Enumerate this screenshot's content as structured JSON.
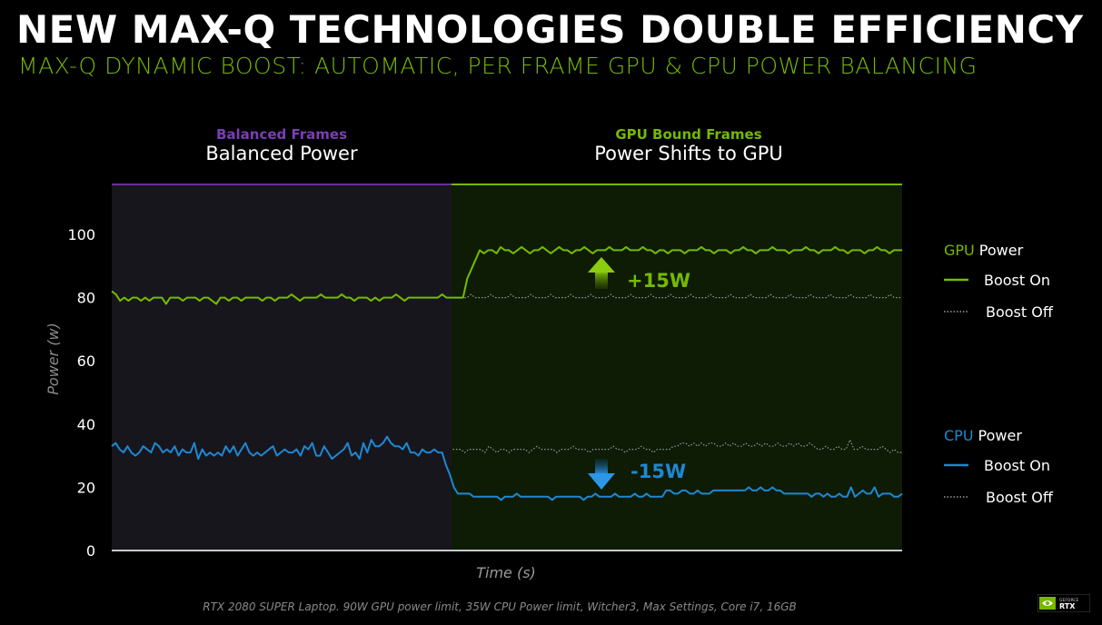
{
  "title": "NEW MAX-Q TECHNOLOGIES DOUBLE EFFICIENCY",
  "subtitle": "MAX-Q DYNAMIC BOOST: AUTOMATIC, PER FRAME GPU & CPU POWER BALANCING",
  "footnote": "RTX 2080 SUPER Laptop. 90W GPU power limit, 35W CPU Power limit, Witcher3, Max Settings, Core i7, 16GB",
  "logo": {
    "text_top": "GEFORCE",
    "text_main": "RTX"
  },
  "colors": {
    "gpu": "#76b900",
    "cpu": "#1e88d2",
    "balanced": "#6a2f9e",
    "gpu_region_bg": "#0d1a04",
    "balanced_region_bg": "#17161d"
  },
  "chart_data": {
    "type": "line",
    "xlabel": "Time (s)",
    "ylabel": "Power (w)",
    "ylim": [
      0,
      100
    ],
    "yticks": [
      0,
      20,
      40,
      60,
      80,
      100
    ],
    "regions": [
      {
        "category": "Balanced Frames",
        "label": "Balanced Power",
        "x_start": 0,
        "x_end": 0.43
      },
      {
        "category": "GPU Bound Frames",
        "label": "Power Shifts to GPU",
        "x_start": 0.43,
        "x_end": 1.0
      }
    ],
    "annotations": [
      {
        "text": "+15W",
        "direction": "up",
        "series": "gpu"
      },
      {
        "text": "-15W",
        "direction": "down",
        "series": "cpu"
      }
    ],
    "legend_groups": [
      {
        "name_prefix": "GPU",
        "name_suffix": "Power",
        "entries": [
          "Boost On",
          "Boost Off"
        ]
      },
      {
        "name_prefix": "CPU",
        "name_suffix": "Power",
        "entries": [
          "Boost On",
          "Boost Off"
        ]
      }
    ],
    "legend_placement": "right",
    "series": [
      {
        "name": "GPU Power Boost On",
        "values": [
          82,
          81,
          79,
          80,
          79,
          80,
          80,
          79,
          80,
          79,
          80,
          80,
          80,
          78,
          80,
          80,
          80,
          79,
          80,
          80,
          80,
          79,
          80,
          80,
          79,
          78,
          80,
          80,
          79,
          80,
          80,
          79,
          80,
          80,
          80,
          80,
          79,
          80,
          80,
          79,
          80,
          80,
          80,
          81,
          80,
          79,
          80,
          80,
          80,
          80,
          81,
          80,
          80,
          80,
          80,
          81,
          80,
          80,
          79,
          80,
          80,
          80,
          79,
          80,
          79,
          80,
          80,
          80,
          81,
          80,
          79,
          80,
          80,
          80,
          80,
          80,
          80,
          80,
          80,
          81,
          80,
          80,
          80,
          80,
          80,
          86,
          89,
          92,
          95,
          94,
          95,
          95,
          94,
          96,
          95,
          95,
          94,
          95,
          96,
          95,
          94,
          95,
          95,
          96,
          95,
          94,
          95,
          96,
          95,
          95,
          94,
          95,
          95,
          96,
          95,
          94,
          95,
          95,
          95,
          96,
          95,
          95,
          95,
          96,
          95,
          95,
          95,
          96,
          95,
          95,
          94,
          95,
          95,
          94,
          95,
          95,
          95,
          94,
          95,
          95,
          95,
          96,
          95,
          95,
          94,
          95,
          95,
          95,
          94,
          95,
          95,
          96,
          95,
          95,
          94,
          95,
          95,
          95,
          96,
          95,
          95,
          95,
          94,
          95,
          95,
          95,
          96,
          95,
          95,
          94,
          95,
          95,
          95,
          96,
          95,
          95,
          94,
          95,
          95,
          95,
          94,
          95,
          95,
          96,
          95,
          95,
          94,
          95,
          95,
          95
        ]
      },
      {
        "name": "GPU Power Boost Off",
        "values": [
          80,
          80,
          80,
          80,
          80,
          81,
          80,
          80,
          80,
          80,
          81,
          80,
          80,
          80,
          80,
          81,
          80,
          80,
          80,
          80,
          81,
          80,
          80,
          80,
          80,
          81,
          80,
          80,
          80,
          80,
          81,
          80,
          80,
          80,
          80,
          81,
          80,
          80,
          80,
          80,
          81,
          80,
          80,
          80,
          80,
          81,
          80,
          80,
          80,
          80,
          81,
          80,
          80,
          80,
          80,
          81,
          80,
          80,
          80,
          80,
          81,
          80,
          80,
          80,
          80,
          81,
          80,
          80,
          80,
          80,
          81,
          80,
          80,
          80,
          80,
          81,
          80,
          80,
          80,
          80,
          81,
          80,
          80,
          80,
          80,
          81,
          80,
          80,
          80,
          80,
          81,
          80,
          80,
          80,
          80,
          81,
          80,
          80,
          80,
          80,
          81,
          80,
          80,
          80,
          80,
          81,
          80,
          80,
          80,
          80,
          81,
          80,
          80,
          80,
          80,
          81,
          80,
          80,
          80,
          80,
          81,
          80,
          80,
          80,
          80,
          81,
          80,
          80,
          80,
          80,
          81,
          80,
          80,
          80,
          80,
          81,
          80,
          80,
          80,
          80,
          81,
          80,
          80,
          80,
          80,
          81,
          80,
          80,
          80,
          80,
          81,
          80,
          80,
          80,
          80,
          81,
          80,
          80,
          80,
          80,
          81,
          80,
          80,
          80,
          80,
          81,
          80,
          80,
          80,
          80,
          81,
          80,
          80,
          80,
          80,
          81,
          80,
          80,
          80,
          80,
          81,
          80,
          80,
          80,
          80,
          81,
          80,
          80,
          80,
          80,
          81,
          80,
          80,
          80,
          80,
          81,
          80,
          80,
          80
        ]
      },
      {
        "name": "CPU Power Boost On",
        "values": [
          33,
          34,
          32,
          31,
          33,
          31,
          30,
          31,
          33,
          32,
          31,
          34,
          33,
          31,
          32,
          31,
          33,
          30,
          32,
          31,
          31,
          34,
          29,
          32,
          30,
          31,
          30,
          31,
          30,
          33,
          31,
          33,
          30,
          32,
          34,
          31,
          30,
          31,
          30,
          31,
          32,
          33,
          30,
          31,
          32,
          31,
          31,
          32,
          30,
          33,
          32,
          34,
          30,
          30,
          33,
          31,
          29,
          30,
          31,
          32,
          34,
          30,
          31,
          29,
          34,
          31,
          35,
          33,
          33,
          34,
          36,
          34,
          33,
          33,
          32,
          34,
          31,
          31,
          30,
          32,
          31,
          31,
          32,
          31,
          31,
          27,
          24,
          20,
          18,
          18,
          18,
          18,
          17,
          17,
          17,
          17,
          17,
          17,
          17,
          16,
          17,
          17,
          17,
          18,
          17,
          17,
          17,
          17,
          17,
          17,
          17,
          17,
          16,
          17,
          17,
          17,
          17,
          17,
          17,
          17,
          16,
          17,
          17,
          18,
          17,
          17,
          17,
          17,
          18,
          17,
          17,
          17,
          17,
          18,
          17,
          17,
          18,
          17,
          17,
          17,
          17,
          19,
          19,
          18,
          18,
          19,
          19,
          18,
          18,
          19,
          18,
          18,
          18,
          19,
          19,
          19,
          19,
          19,
          19,
          19,
          19,
          19,
          20,
          19,
          19,
          20,
          19,
          19,
          20,
          19,
          19,
          18,
          18,
          18,
          18,
          18,
          18,
          18,
          17,
          18,
          18,
          17,
          18,
          17,
          17,
          18,
          17,
          17,
          20,
          17,
          18,
          19,
          18,
          18,
          20,
          17,
          18,
          18,
          18,
          17,
          17,
          18
        ]
      },
      {
        "name": "CPU Power Boost Off",
        "values": [
          31,
          31,
          31,
          31,
          31,
          31,
          31,
          31,
          31,
          31,
          31,
          31,
          31,
          31,
          31,
          31,
          31,
          31,
          31,
          31,
          31,
          31,
          31,
          31,
          31,
          31,
          31,
          31,
          31,
          31,
          31,
          31,
          31,
          31,
          31,
          31,
          31,
          31,
          31,
          31,
          31,
          31,
          31,
          31,
          31,
          31,
          31,
          31,
          31,
          31,
          31,
          31,
          31,
          31,
          31,
          31,
          31,
          31,
          31,
          31,
          31,
          31,
          31,
          31,
          31,
          31,
          31,
          31,
          31,
          31,
          31,
          31,
          31,
          31,
          31,
          31,
          31,
          31,
          31,
          31,
          31,
          31,
          31,
          31,
          31,
          32,
          32,
          32,
          31,
          32,
          32,
          32,
          32,
          31,
          33,
          32,
          31,
          32,
          32,
          31,
          32,
          32,
          32,
          32,
          31,
          32,
          33,
          32,
          32,
          32,
          32,
          31,
          32,
          32,
          32,
          33,
          32,
          32,
          32,
          31,
          32,
          32,
          32,
          32,
          32,
          33,
          32,
          32,
          31,
          32,
          32,
          32,
          33,
          32,
          32,
          31,
          32,
          32,
          32,
          32,
          33,
          33,
          34,
          34,
          33,
          34,
          33,
          34,
          33,
          34,
          34,
          33,
          33,
          34,
          33,
          34,
          33,
          33,
          34,
          33,
          33,
          34,
          33,
          34,
          33,
          33,
          34,
          33,
          33,
          34,
          33,
          34,
          33,
          33,
          34,
          33,
          32,
          32,
          33,
          32,
          32,
          33,
          32,
          32,
          35,
          32,
          32,
          33,
          32,
          32,
          32,
          32,
          33,
          32,
          31,
          32,
          31,
          31
        ]
      }
    ]
  }
}
